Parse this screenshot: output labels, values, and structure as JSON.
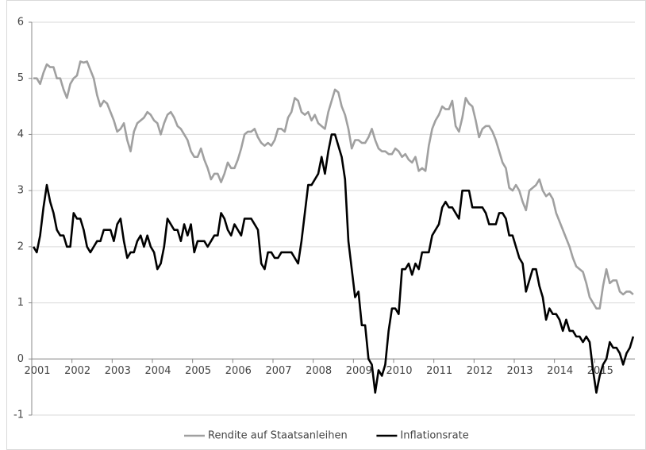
{
  "chart_data": {
    "type": "line",
    "categories": [
      "2001",
      null,
      null,
      null,
      null,
      null,
      null,
      null,
      null,
      null,
      null,
      null,
      "2002",
      null,
      null,
      null,
      null,
      null,
      null,
      null,
      null,
      null,
      null,
      null,
      "2003",
      null,
      null,
      null,
      null,
      null,
      null,
      null,
      null,
      null,
      null,
      null,
      "2004",
      null,
      null,
      null,
      null,
      null,
      null,
      null,
      null,
      null,
      null,
      null,
      "2005",
      null,
      null,
      null,
      null,
      null,
      null,
      null,
      null,
      null,
      null,
      null,
      "2006",
      null,
      null,
      null,
      null,
      null,
      null,
      null,
      null,
      null,
      null,
      null,
      "2007",
      null,
      null,
      null,
      null,
      null,
      null,
      null,
      null,
      null,
      null,
      null,
      "2008",
      null,
      null,
      null,
      null,
      null,
      null,
      null,
      null,
      null,
      null,
      null,
      "2009",
      null,
      null,
      null,
      null,
      null,
      null,
      null,
      null,
      null,
      null,
      null,
      "2010",
      null,
      null,
      null,
      null,
      null,
      null,
      null,
      null,
      null,
      null,
      null,
      "2011",
      null,
      null,
      null,
      null,
      null,
      null,
      null,
      null,
      null,
      null,
      null,
      "2012",
      null,
      null,
      null,
      null,
      null,
      null,
      null,
      null,
      null,
      null,
      null,
      "2013",
      null,
      null,
      null,
      null,
      null,
      null,
      null,
      null,
      null,
      null,
      null,
      "2014",
      null,
      null,
      null,
      null,
      null,
      null,
      null,
      null,
      null,
      null,
      null,
      "2015",
      null,
      null,
      null,
      null,
      null,
      null,
      null,
      null,
      null,
      null,
      null
    ],
    "series": [
      {
        "name": "Rendite auf Staatsanleihen",
        "color": "#a0a0a0",
        "values": [
          5.0,
          5.0,
          4.9,
          5.1,
          5.25,
          5.2,
          5.2,
          5.0,
          5.0,
          4.8,
          4.65,
          4.9,
          5.0,
          5.05,
          5.3,
          5.28,
          5.3,
          5.15,
          5.0,
          4.7,
          4.5,
          4.6,
          4.55,
          4.4,
          4.25,
          4.05,
          4.1,
          4.2,
          3.9,
          3.7,
          4.05,
          4.2,
          4.25,
          4.3,
          4.4,
          4.35,
          4.25,
          4.2,
          4.0,
          4.2,
          4.35,
          4.4,
          4.3,
          4.15,
          4.1,
          4.0,
          3.9,
          3.7,
          3.6,
          3.6,
          3.75,
          3.55,
          3.4,
          3.2,
          3.3,
          3.3,
          3.15,
          3.3,
          3.5,
          3.4,
          3.4,
          3.55,
          3.75,
          4.0,
          4.05,
          4.05,
          4.1,
          3.95,
          3.85,
          3.8,
          3.85,
          3.8,
          3.9,
          4.1,
          4.1,
          4.05,
          4.3,
          4.4,
          4.65,
          4.6,
          4.4,
          4.35,
          4.4,
          4.25,
          4.35,
          4.2,
          4.15,
          4.1,
          4.4,
          4.6,
          4.8,
          4.75,
          4.5,
          4.35,
          4.1,
          3.75,
          3.9,
          3.9,
          3.85,
          3.85,
          3.95,
          4.1,
          3.9,
          3.75,
          3.7,
          3.7,
          3.65,
          3.65,
          3.75,
          3.7,
          3.6,
          3.65,
          3.55,
          3.5,
          3.6,
          3.35,
          3.4,
          3.35,
          3.8,
          4.1,
          4.25,
          4.35,
          4.5,
          4.45,
          4.45,
          4.6,
          4.15,
          4.05,
          4.3,
          4.65,
          4.55,
          4.5,
          4.25,
          3.95,
          4.1,
          4.15,
          4.15,
          4.05,
          3.9,
          3.7,
          3.5,
          3.4,
          3.05,
          3.0,
          3.1,
          3.0,
          2.8,
          2.65,
          3.0,
          3.05,
          3.1,
          3.2,
          3.0,
          2.9,
          2.95,
          2.85,
          2.6,
          2.45,
          2.3,
          2.15,
          2.0,
          1.8,
          1.65,
          1.6,
          1.55,
          1.35,
          1.1,
          1.0,
          0.9,
          0.9,
          1.3,
          1.6,
          1.35,
          1.4,
          1.4,
          1.2,
          1.15,
          1.2,
          1.2,
          1.15
        ]
      },
      {
        "name": "Inflationsrate",
        "color": "#000000",
        "values": [
          2.0,
          1.9,
          2.2,
          2.7,
          3.1,
          2.8,
          2.6,
          2.3,
          2.2,
          2.2,
          2.0,
          2.0,
          2.6,
          2.5,
          2.5,
          2.3,
          2.0,
          1.9,
          2.0,
          2.1,
          2.1,
          2.3,
          2.3,
          2.3,
          2.1,
          2.4,
          2.5,
          2.1,
          1.8,
          1.9,
          1.9,
          2.1,
          2.2,
          2.0,
          2.2,
          2.0,
          1.9,
          1.6,
          1.7,
          2.0,
          2.5,
          2.4,
          2.3,
          2.3,
          2.1,
          2.4,
          2.2,
          2.4,
          1.9,
          2.1,
          2.1,
          2.1,
          2.0,
          2.1,
          2.2,
          2.2,
          2.6,
          2.5,
          2.3,
          2.2,
          2.4,
          2.3,
          2.2,
          2.5,
          2.5,
          2.5,
          2.4,
          2.3,
          1.7,
          1.6,
          1.9,
          1.9,
          1.8,
          1.8,
          1.9,
          1.9,
          1.9,
          1.9,
          1.8,
          1.7,
          2.1,
          2.6,
          3.1,
          3.1,
          3.2,
          3.3,
          3.6,
          3.3,
          3.7,
          4.0,
          4.0,
          3.8,
          3.6,
          3.2,
          2.1,
          1.6,
          1.1,
          1.2,
          0.6,
          0.6,
          0.0,
          -0.1,
          -0.6,
          -0.2,
          -0.3,
          -0.1,
          0.5,
          0.9,
          0.9,
          0.8,
          1.6,
          1.6,
          1.7,
          1.5,
          1.7,
          1.6,
          1.9,
          1.9,
          1.9,
          2.2,
          2.3,
          2.4,
          2.7,
          2.8,
          2.7,
          2.7,
          2.6,
          2.5,
          3.0,
          3.0,
          3.0,
          2.7,
          2.7,
          2.7,
          2.7,
          2.6,
          2.4,
          2.4,
          2.4,
          2.6,
          2.6,
          2.5,
          2.2,
          2.2,
          2.0,
          1.8,
          1.7,
          1.2,
          1.4,
          1.6,
          1.6,
          1.3,
          1.1,
          0.7,
          0.9,
          0.8,
          0.8,
          0.7,
          0.5,
          0.7,
          0.5,
          0.5,
          0.4,
          0.4,
          0.3,
          0.4,
          0.3,
          -0.2,
          -0.6,
          -0.3,
          -0.1,
          0.0,
          0.3,
          0.2,
          0.2,
          0.1,
          -0.1,
          0.1,
          0.2,
          0.4
        ]
      }
    ],
    "ylim": [
      -1,
      6
    ],
    "yticks": [
      -1,
      0,
      1,
      2,
      3,
      4,
      5,
      6
    ],
    "grid": true,
    "legend": "bottom"
  }
}
